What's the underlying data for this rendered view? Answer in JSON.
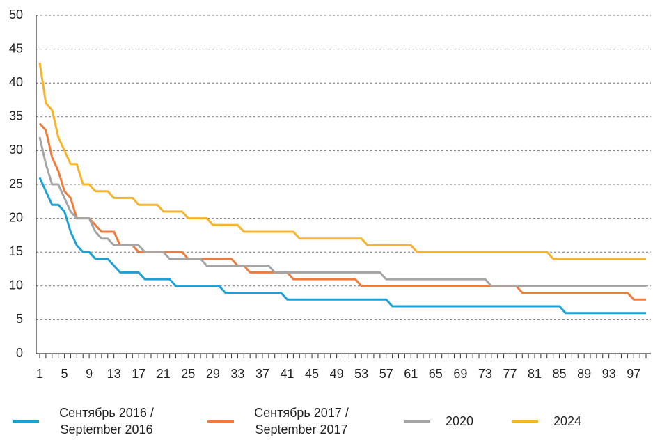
{
  "chart_data": {
    "type": "line",
    "categories": [
      1,
      null,
      null,
      null,
      5,
      null,
      null,
      null,
      9,
      null,
      null,
      null,
      13,
      null,
      null,
      null,
      17,
      null,
      null,
      null,
      21,
      null,
      null,
      null,
      25,
      null,
      null,
      null,
      29,
      null,
      null,
      null,
      33,
      null,
      null,
      null,
      37,
      null,
      null,
      null,
      41,
      null,
      null,
      null,
      45,
      null,
      null,
      null,
      49,
      null,
      null,
      null,
      53,
      null,
      null,
      null,
      57,
      null,
      null,
      null,
      61,
      null,
      null,
      null,
      65,
      null,
      null,
      null,
      69,
      null,
      null,
      null,
      73,
      null,
      null,
      null,
      77,
      null,
      null,
      null,
      81,
      null,
      null,
      null,
      85,
      null,
      null,
      null,
      89,
      null,
      null,
      null,
      93,
      null,
      null,
      null,
      97,
      null,
      null
    ],
    "series": [
      {
        "name": "Сентябрь 2016 / September 2016",
        "color": "#1ba1d6",
        "values": [
          26,
          24,
          22,
          22,
          21,
          18,
          16,
          15,
          15,
          14,
          14,
          14,
          13,
          12,
          12,
          12,
          12,
          11,
          11,
          11,
          11,
          11,
          10,
          10,
          10,
          10,
          10,
          10,
          10,
          10,
          9,
          9,
          9,
          9,
          9,
          9,
          9,
          9,
          9,
          9,
          8,
          8,
          8,
          8,
          8,
          8,
          8,
          8,
          8,
          8,
          8,
          8,
          8,
          8,
          8,
          8,
          8,
          7,
          7,
          7,
          7,
          7,
          7,
          7,
          7,
          7,
          7,
          7,
          7,
          7,
          7,
          7,
          7,
          7,
          7,
          7,
          7,
          7,
          7,
          7,
          7,
          7,
          7,
          7,
          7,
          6,
          6,
          6,
          6,
          6,
          6,
          6,
          6,
          6,
          6,
          6,
          6,
          6,
          6
        ]
      },
      {
        "name": "Сентябрь 2017 / September 2017",
        "color": "#f07b3a",
        "values": [
          34,
          33,
          29,
          27,
          24,
          23,
          20,
          20,
          20,
          19,
          18,
          18,
          18,
          16,
          16,
          16,
          15,
          15,
          15,
          15,
          15,
          15,
          15,
          15,
          14,
          14,
          14,
          14,
          14,
          14,
          14,
          14,
          13,
          13,
          12,
          12,
          12,
          12,
          12,
          12,
          12,
          11,
          11,
          11,
          11,
          11,
          11,
          11,
          11,
          11,
          11,
          11,
          10,
          10,
          10,
          10,
          10,
          10,
          10,
          10,
          10,
          10,
          10,
          10,
          10,
          10,
          10,
          10,
          10,
          10,
          10,
          10,
          10,
          10,
          10,
          10,
          10,
          10,
          9,
          9,
          9,
          9,
          9,
          9,
          9,
          9,
          9,
          9,
          9,
          9,
          9,
          9,
          9,
          9,
          9,
          9,
          8,
          8,
          8
        ]
      },
      {
        "name": "2020",
        "color": "#a5a5a5",
        "values": [
          32,
          28,
          25,
          25,
          23,
          21,
          20,
          20,
          20,
          18,
          17,
          17,
          16,
          16,
          16,
          16,
          16,
          15,
          15,
          15,
          15,
          14,
          14,
          14,
          14,
          14,
          14,
          13,
          13,
          13,
          13,
          13,
          13,
          13,
          13,
          13,
          13,
          13,
          12,
          12,
          12,
          12,
          12,
          12,
          12,
          12,
          12,
          12,
          12,
          12,
          12,
          12,
          12,
          12,
          12,
          12,
          11,
          11,
          11,
          11,
          11,
          11,
          11,
          11,
          11,
          11,
          11,
          11,
          11,
          11,
          11,
          11,
          11,
          10,
          10,
          10,
          10,
          10,
          10,
          10,
          10,
          10,
          10,
          10,
          10,
          10,
          10,
          10,
          10,
          10,
          10,
          10,
          10,
          10,
          10,
          10,
          10,
          10,
          10
        ]
      },
      {
        "name": "2024",
        "color": "#f8b32b",
        "values": [
          43,
          37,
          36,
          32,
          30,
          28,
          28,
          25,
          25,
          24,
          24,
          24,
          23,
          23,
          23,
          23,
          22,
          22,
          22,
          22,
          21,
          21,
          21,
          21,
          20,
          20,
          20,
          20,
          19,
          19,
          19,
          19,
          19,
          18,
          18,
          18,
          18,
          18,
          18,
          18,
          18,
          18,
          17,
          17,
          17,
          17,
          17,
          17,
          17,
          17,
          17,
          17,
          17,
          16,
          16,
          16,
          16,
          16,
          16,
          16,
          16,
          15,
          15,
          15,
          15,
          15,
          15,
          15,
          15,
          15,
          15,
          15,
          15,
          15,
          15,
          15,
          15,
          15,
          15,
          15,
          15,
          15,
          15,
          14,
          14,
          14,
          14,
          14,
          14,
          14,
          14,
          14,
          14,
          14,
          14,
          14,
          14,
          14,
          14
        ]
      }
    ],
    "ylim": [
      0,
      50
    ],
    "yticks": [
      0,
      5,
      10,
      15,
      20,
      25,
      30,
      35,
      40,
      45,
      50
    ],
    "grid": true
  }
}
